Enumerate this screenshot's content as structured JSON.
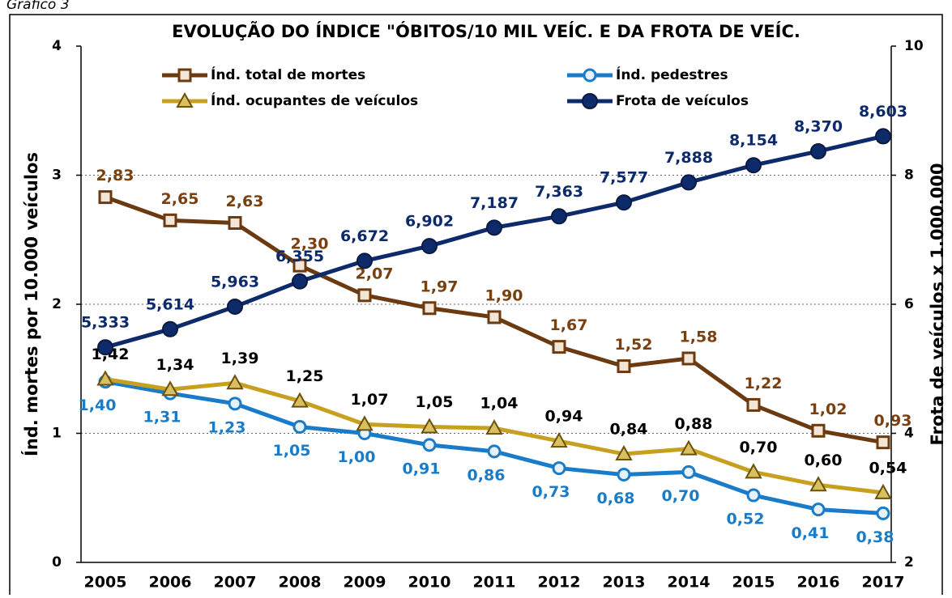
{
  "caption": "Gráfico 3",
  "chart_data": {
    "type": "line",
    "title": "EVOLUÇÃO DO ÍNDICE \"ÓBITOS/10 MIL VEÍC. E DA FROTA DE VEÍC.",
    "y_label": "Índ. mortes por 10.000 veículos",
    "y2_label": "Frota de veículos x 1.000.000",
    "categories": [
      "2005",
      "2006",
      "2007",
      "2008",
      "2009",
      "2010",
      "2011",
      "2012",
      "2013",
      "2014",
      "2015",
      "2016",
      "2017"
    ],
    "ylim": [
      0,
      4
    ],
    "yticks": [
      0,
      1,
      2,
      3,
      4
    ],
    "y2lim": [
      2,
      10
    ],
    "y2ticks": [
      2,
      4,
      6,
      8,
      10
    ],
    "grid": true,
    "series": [
      {
        "name": "Índ. total de mortes",
        "color": "#6b3a10",
        "marker": "square",
        "values": [
          2.83,
          2.65,
          2.63,
          2.3,
          2.07,
          1.97,
          1.9,
          1.67,
          1.52,
          1.58,
          1.22,
          1.02,
          0.93
        ],
        "value_labels": [
          "2,83",
          "2,65",
          "2,63",
          "2,30",
          "2,07",
          "1,97",
          "1,90",
          "1,67",
          "1,52",
          "1,58",
          "1,22",
          "1,02",
          "0,93"
        ]
      },
      {
        "name": "Índ. pedestres",
        "color": "#1a7cc8",
        "marker": "circle",
        "values": [
          1.4,
          1.31,
          1.23,
          1.05,
          1.0,
          0.91,
          0.86,
          0.73,
          0.68,
          0.7,
          0.52,
          0.41,
          0.38
        ],
        "value_labels": [
          "1,40",
          "1,31",
          "1,23",
          "1,05",
          "1,00",
          "0,91",
          "0,86",
          "0,73",
          "0,68",
          "0,70",
          "0,52",
          "0,41",
          "0,38"
        ]
      },
      {
        "name": "Índ. ocupantes de veículos",
        "color": "#c8a020",
        "marker": "triangle",
        "values": [
          1.42,
          1.34,
          1.39,
          1.25,
          1.07,
          1.05,
          1.04,
          0.94,
          0.84,
          0.88,
          0.7,
          0.6,
          0.54
        ],
        "value_labels": [
          "1,42",
          "1,34",
          "1,39",
          "1,25",
          "1,07",
          "1,05",
          "1,04",
          "0,94",
          "0,84",
          "0,88",
          "0,70",
          "0,60",
          "0,54"
        ]
      },
      {
        "name": "Frota de veículos",
        "color": "#0d2a6b",
        "marker": "dot",
        "axis": "y2",
        "values": [
          5.333,
          5.614,
          5.963,
          6.355,
          6.672,
          6.902,
          7.187,
          7.363,
          7.577,
          7.888,
          8.154,
          8.37,
          8.603
        ],
        "value_labels": [
          "5,333",
          "5,614",
          "5,963",
          "6,355",
          "6,672",
          "6,902",
          "7,187",
          "7,363",
          "7,577",
          "7,888",
          "8,154",
          "8,370",
          "8,603"
        ]
      }
    ]
  }
}
